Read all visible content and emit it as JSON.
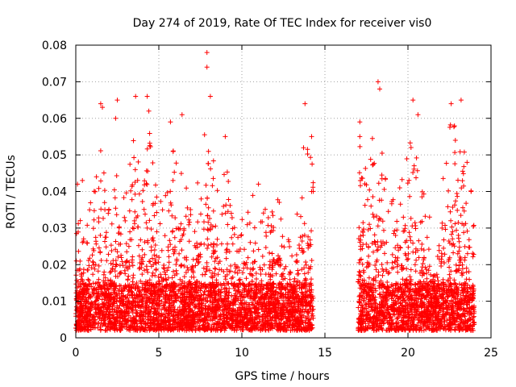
{
  "chart_data": {
    "type": "scatter",
    "title": "Day 274 of 2019, Rate Of TEC Index for receiver vis0",
    "xlabel": "GPS time / hours",
    "ylabel": "ROTI / TECUs",
    "xlim": [
      0,
      25
    ],
    "ylim": [
      0,
      0.08
    ],
    "x_ticks": [
      0,
      5,
      10,
      15,
      20,
      25
    ],
    "x_tick_labels": [
      "0",
      "5",
      "10",
      "15",
      "20",
      "25"
    ],
    "y_ticks": [
      0,
      0.01,
      0.02,
      0.03,
      0.04,
      0.05,
      0.06,
      0.07,
      0.08
    ],
    "y_tick_labels": [
      "0",
      "0.01",
      "0.02",
      "0.03",
      "0.04",
      "0.05",
      "0.06",
      "0.07",
      "0.08"
    ],
    "grid": true,
    "marker": "+",
    "color": "#ff0000",
    "series": [
      {
        "name": "vis0 ROTI",
        "coverage_hours": [
          [
            0,
            14.3
          ],
          [
            17.0,
            24.0
          ]
        ],
        "baseline_range": [
          0.002,
          0.015
        ],
        "notable_points": [
          {
            "x": 0.1,
            "y": 0.042
          },
          {
            "x": 0.4,
            "y": 0.043
          },
          {
            "x": 1.5,
            "y": 0.064
          },
          {
            "x": 1.6,
            "y": 0.063
          },
          {
            "x": 2.5,
            "y": 0.065
          },
          {
            "x": 2.4,
            "y": 0.06
          },
          {
            "x": 3.6,
            "y": 0.066
          },
          {
            "x": 4.3,
            "y": 0.066
          },
          {
            "x": 4.4,
            "y": 0.062
          },
          {
            "x": 5.7,
            "y": 0.059
          },
          {
            "x": 6.4,
            "y": 0.061
          },
          {
            "x": 7.9,
            "y": 0.078
          },
          {
            "x": 7.9,
            "y": 0.074
          },
          {
            "x": 8.1,
            "y": 0.066
          },
          {
            "x": 9.0,
            "y": 0.055
          },
          {
            "x": 11.0,
            "y": 0.042
          },
          {
            "x": 13.8,
            "y": 0.064
          },
          {
            "x": 14.2,
            "y": 0.055
          },
          {
            "x": 14.2,
            "y": 0.04
          },
          {
            "x": 17.1,
            "y": 0.059
          },
          {
            "x": 17.1,
            "y": 0.055
          },
          {
            "x": 18.2,
            "y": 0.07
          },
          {
            "x": 18.3,
            "y": 0.068
          },
          {
            "x": 20.3,
            "y": 0.065
          },
          {
            "x": 20.6,
            "y": 0.061
          },
          {
            "x": 22.6,
            "y": 0.064
          },
          {
            "x": 23.2,
            "y": 0.065
          },
          {
            "x": 23.8,
            "y": 0.04
          }
        ],
        "activity_envelope": [
          {
            "x": 0.0,
            "y": 0.035
          },
          {
            "x": 0.5,
            "y": 0.03
          },
          {
            "x": 1.0,
            "y": 0.04
          },
          {
            "x": 1.5,
            "y": 0.058
          },
          {
            "x": 2.0,
            "y": 0.035
          },
          {
            "x": 2.5,
            "y": 0.055
          },
          {
            "x": 3.0,
            "y": 0.04
          },
          {
            "x": 3.6,
            "y": 0.06
          },
          {
            "x": 4.0,
            "y": 0.04
          },
          {
            "x": 4.4,
            "y": 0.058
          },
          {
            "x": 5.0,
            "y": 0.035
          },
          {
            "x": 5.8,
            "y": 0.055
          },
          {
            "x": 6.4,
            "y": 0.055
          },
          {
            "x": 7.0,
            "y": 0.035
          },
          {
            "x": 7.9,
            "y": 0.065
          },
          {
            "x": 8.5,
            "y": 0.045
          },
          {
            "x": 9.0,
            "y": 0.05
          },
          {
            "x": 9.5,
            "y": 0.035
          },
          {
            "x": 10.0,
            "y": 0.035
          },
          {
            "x": 11.0,
            "y": 0.042
          },
          {
            "x": 11.5,
            "y": 0.035
          },
          {
            "x": 12.0,
            "y": 0.04
          },
          {
            "x": 13.0,
            "y": 0.03
          },
          {
            "x": 13.8,
            "y": 0.055
          },
          {
            "x": 14.2,
            "y": 0.05
          },
          {
            "x": 17.1,
            "y": 0.055
          },
          {
            "x": 17.6,
            "y": 0.05
          },
          {
            "x": 18.2,
            "y": 0.065
          },
          {
            "x": 18.8,
            "y": 0.04
          },
          {
            "x": 19.5,
            "y": 0.045
          },
          {
            "x": 20.3,
            "y": 0.06
          },
          {
            "x": 21.0,
            "y": 0.04
          },
          {
            "x": 21.5,
            "y": 0.03
          },
          {
            "x": 22.6,
            "y": 0.06
          },
          {
            "x": 23.2,
            "y": 0.06
          },
          {
            "x": 23.8,
            "y": 0.045
          }
        ]
      }
    ]
  }
}
